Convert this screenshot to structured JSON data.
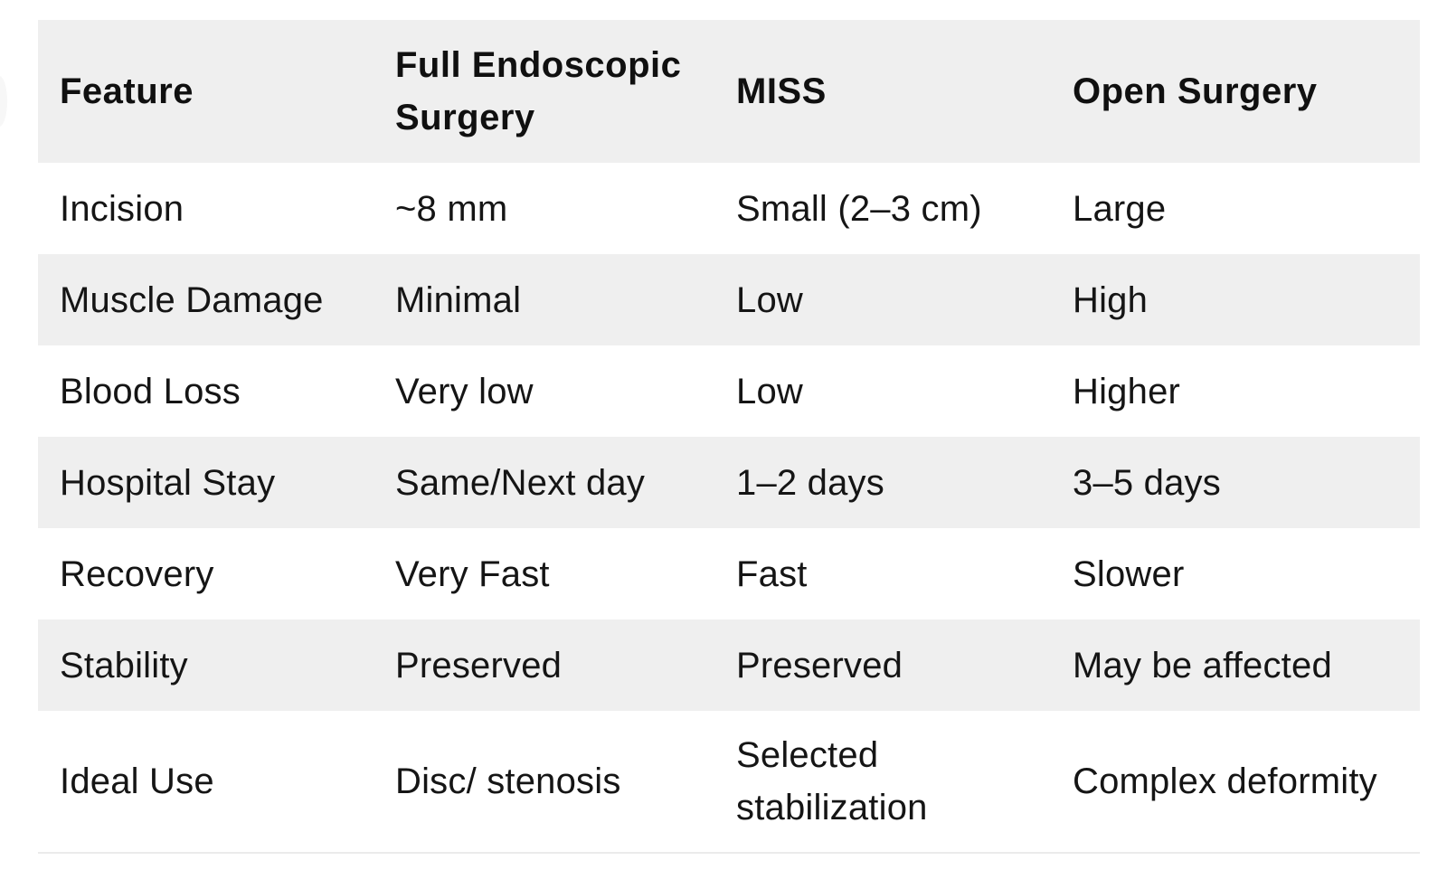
{
  "table": {
    "header": {
      "feature": "Feature",
      "endoscopic": "Full Endoscopic Surgery",
      "miss": "MISS",
      "open": "Open Surgery"
    },
    "rows": [
      {
        "feature": "Incision",
        "endoscopic": "~8 mm",
        "miss": "Small (2–3 cm)",
        "open": "Large"
      },
      {
        "feature": "Muscle Damage",
        "endoscopic": "Minimal",
        "miss": "Low",
        "open": "High"
      },
      {
        "feature": "Blood Loss",
        "endoscopic": "Very low",
        "miss": "Low",
        "open": "Higher"
      },
      {
        "feature": "Hospital Stay",
        "endoscopic": "Same/Next day",
        "miss": "1–2 days",
        "open": "3–5 days"
      },
      {
        "feature": "Recovery",
        "endoscopic": "Very Fast",
        "miss": "Fast",
        "open": "Slower"
      },
      {
        "feature": "Stability",
        "endoscopic": "Preserved",
        "miss": "Preserved",
        "open": "May be affected"
      },
      {
        "feature": "Ideal Use",
        "endoscopic": "Disc/ stenosis",
        "miss": "Selected stabilization",
        "open": "Complex deformity"
      }
    ],
    "colors": {
      "header_bg": "#efefef",
      "stripe_bg": "#efefef",
      "row_bg": "#ffffff",
      "text": "#151515",
      "bottom_rule": "#ebebeb"
    }
  }
}
